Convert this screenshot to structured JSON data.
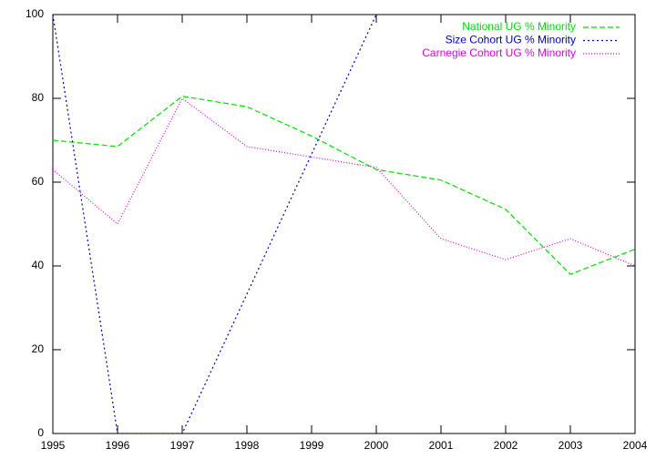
{
  "chart_data": {
    "type": "line",
    "x": [
      1995,
      1996,
      1997,
      1998,
      1999,
      2000,
      2001,
      2002,
      2003,
      2004
    ],
    "series": [
      {
        "name": "National UG % Minority",
        "color": "#00dd00",
        "dash": "6 3",
        "values": [
          70,
          68.5,
          80.5,
          78,
          71,
          63,
          60.5,
          53.5,
          38,
          44
        ]
      },
      {
        "name": "Size Cohort UG % Minority",
        "color": "#0000bb",
        "dash": "2 3",
        "values": [
          100,
          0,
          0,
          33.3,
          66.7,
          100,
          null,
          null,
          null,
          null
        ]
      },
      {
        "name": "Carnegie Cohort UG % Minority",
        "color": "#dd00dd",
        "dash": "1 2",
        "values": [
          63,
          50,
          80,
          68.5,
          66,
          63.5,
          46.5,
          41.5,
          46.5,
          40
        ]
      }
    ],
    "xlim": [
      1995,
      2004
    ],
    "xticks": [
      1995,
      1996,
      1997,
      1998,
      1999,
      2000,
      2001,
      2002,
      2003,
      2004
    ],
    "ylim": [
      0,
      100
    ],
    "yticks": [
      0,
      20,
      40,
      60,
      80,
      100
    ],
    "grid": false,
    "legend": "top-right"
  }
}
